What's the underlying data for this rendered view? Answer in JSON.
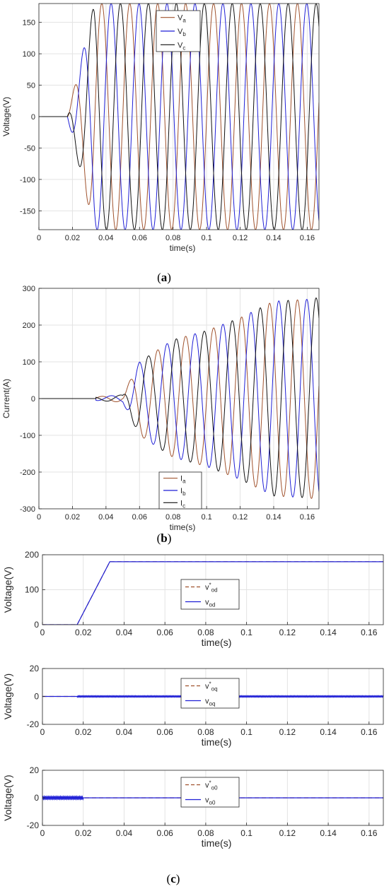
{
  "captions": {
    "a": {
      "open": "(",
      "letter": "a",
      "close": ")"
    },
    "b": {
      "open": "(",
      "letter": "b",
      "close": ")"
    },
    "c": {
      "open": "(",
      "letter": "c",
      "close": ")"
    }
  },
  "colors": {
    "a": "#a0522d",
    "b": "#1f1fd6",
    "c": "#111111",
    "ref": "#a0522d",
    "meas": "#1f1fd6"
  },
  "chart_data": [
    {
      "id": "a",
      "type": "line",
      "xlabel": "time(s)",
      "ylabel": "Voltage(V)",
      "xlim": [
        0,
        0.167
      ],
      "ylim": [
        -180,
        180
      ],
      "xticks": [
        0,
        0.02,
        0.04,
        0.06,
        0.08,
        0.1,
        0.12,
        0.14,
        0.16
      ],
      "xtick_labels": [
        "0",
        "0.02",
        "0.04",
        "0.06",
        "0.08",
        "0.1",
        "0.12",
        "0.14",
        "0.16"
      ],
      "yticks": [
        150,
        100,
        50,
        0,
        -50,
        -100,
        -150
      ],
      "ytick_labels": [
        "150",
        "100",
        "50",
        "0",
        "-50",
        "-100",
        "-150"
      ],
      "grid": true,
      "legend_position": "top-right",
      "series": [
        {
          "base": "V",
          "sub": "a",
          "amplitude": 180,
          "frequency": 60,
          "phase_deg": 0,
          "start": 0.017,
          "ramp_end": 0.033
        },
        {
          "base": "V",
          "sub": "b",
          "amplitude": 180,
          "frequency": 60,
          "phase_deg": -120,
          "start": 0.017,
          "ramp_end": 0.033
        },
        {
          "base": "V",
          "sub": "c",
          "amplitude": 180,
          "frequency": 60,
          "phase_deg": 120,
          "start": 0.017,
          "ramp_end": 0.033
        }
      ]
    },
    {
      "id": "b",
      "type": "line",
      "xlabel": "time(s)",
      "ylabel": "Current(A)",
      "xlim": [
        0,
        0.167
      ],
      "ylim": [
        -300,
        300
      ],
      "xticks": [
        0,
        0.02,
        0.04,
        0.06,
        0.08,
        0.1,
        0.12,
        0.14,
        0.16
      ],
      "xtick_labels": [
        "0",
        "0.02",
        "0.04",
        "0.06",
        "0.08",
        "0.1",
        "0.12",
        "0.14",
        "0.16"
      ],
      "yticks": [
        300,
        200,
        100,
        0,
        -100,
        -200,
        -300
      ],
      "ytick_labels": [
        "300",
        "200",
        "100",
        "0",
        "-100",
        "-200",
        "-300"
      ],
      "grid": true,
      "legend_position": "bottom-center",
      "envelope": {
        "t": [
          0.034,
          0.05,
          0.06,
          0.08,
          0.1,
          0.12,
          0.14,
          0.16,
          0.167
        ],
        "amp": [
          5,
          10,
          100,
          160,
          185,
          220,
          265,
          270,
          275
        ]
      },
      "series": [
        {
          "base": "I",
          "sub": "a",
          "frequency": 60,
          "phase_deg": 0
        },
        {
          "base": "I",
          "sub": "b",
          "frequency": 60,
          "phase_deg": -120
        },
        {
          "base": "I",
          "sub": "c",
          "frequency": 60,
          "phase_deg": 120
        }
      ]
    },
    {
      "id": "c1",
      "type": "line",
      "xlabel": "time(s)",
      "ylabel": "Voltage(V)",
      "xlim": [
        0,
        0.167
      ],
      "ylim": [
        0,
        200
      ],
      "xticks": [
        0,
        0.02,
        0.04,
        0.06,
        0.08,
        0.1,
        0.12,
        0.14,
        0.16
      ],
      "xtick_labels": [
        "0",
        "0.02",
        "0.04",
        "0.06",
        "0.08",
        "0.1",
        "0.12",
        "0.14",
        "0.16"
      ],
      "yticks": [
        200,
        100,
        0
      ],
      "ytick_labels": [
        "200",
        "100",
        "0"
      ],
      "grid": true,
      "legend_position": "top-right",
      "series": [
        {
          "base": "v",
          "sup": "*",
          "sub": "od",
          "style": "dashed",
          "points": [
            [
              0,
              0
            ],
            [
              0.017,
              0
            ],
            [
              0.033,
              180
            ],
            [
              0.167,
              180
            ]
          ]
        },
        {
          "base": "v",
          "sub": "od",
          "style": "solid",
          "points": [
            [
              0,
              0
            ],
            [
              0.017,
              0
            ],
            [
              0.033,
              180
            ],
            [
              0.167,
              180
            ]
          ]
        }
      ]
    },
    {
      "id": "c2",
      "type": "line",
      "xlabel": "time(s)",
      "ylabel": "Voltage(V)",
      "xlim": [
        0,
        0.167
      ],
      "ylim": [
        -20,
        20
      ],
      "xticks": [
        0,
        0.02,
        0.04,
        0.06,
        0.08,
        0.1,
        0.12,
        0.14,
        0.16
      ],
      "xtick_labels": [
        "0",
        "0.02",
        "0.04",
        "0.06",
        "0.08",
        "0.1",
        "0.12",
        "0.14",
        "0.16"
      ],
      "yticks": [
        20,
        0,
        -20
      ],
      "ytick_labels": [
        "20",
        "0",
        "-20"
      ],
      "grid": true,
      "legend_position": "top-right",
      "series": [
        {
          "base": "v",
          "sup": "*",
          "sub": "oq",
          "style": "dashed",
          "points": [
            [
              0,
              0
            ],
            [
              0.167,
              0
            ]
          ]
        },
        {
          "base": "v",
          "sub": "oq",
          "style": "solid",
          "points": [
            [
              0,
              0
            ],
            [
              0.167,
              0
            ]
          ],
          "ripple": {
            "from": 0.017,
            "to": 0.167,
            "amp": 0.6
          }
        }
      ]
    },
    {
      "id": "c3",
      "type": "line",
      "xlabel": "time(s)",
      "ylabel": "Voltage(V)",
      "xlim": [
        0,
        0.167
      ],
      "ylim": [
        -20,
        20
      ],
      "xticks": [
        0,
        0.02,
        0.04,
        0.06,
        0.08,
        0.1,
        0.12,
        0.14,
        0.16
      ],
      "xtick_labels": [
        "0",
        "0.02",
        "0.04",
        "0.06",
        "0.08",
        "0.1",
        "0.12",
        "0.14",
        "0.16"
      ],
      "yticks": [
        20,
        0,
        -20
      ],
      "ytick_labels": [
        "20",
        "0",
        "-20"
      ],
      "grid": true,
      "legend_position": "top-right",
      "series": [
        {
          "base": "v",
          "sup": "*",
          "sub": "o0",
          "style": "dashed",
          "points": [
            [
              0,
              0
            ],
            [
              0.167,
              0
            ]
          ]
        },
        {
          "base": "v",
          "sub": "o0",
          "style": "solid",
          "points": [
            [
              0,
              0
            ],
            [
              0.167,
              0
            ]
          ],
          "ripple": {
            "from": 0.0,
            "to": 0.02,
            "amp": 1.2
          }
        }
      ]
    }
  ]
}
